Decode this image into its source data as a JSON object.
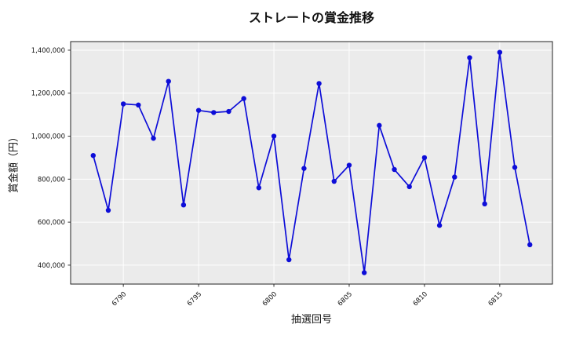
{
  "chart_data": {
    "type": "line",
    "title": "ストレートの賞金推移",
    "xlabel": "抽選回号",
    "ylabel": "賞金額（円）",
    "series_name": "ストレート賞金額",
    "x": [
      6788,
      6789,
      6790,
      6791,
      6792,
      6793,
      6794,
      6795,
      6796,
      6797,
      6798,
      6799,
      6800,
      6801,
      6802,
      6803,
      6804,
      6805,
      6806,
      6807,
      6808,
      6809,
      6810,
      6811,
      6812,
      6813,
      6814,
      6815,
      6816,
      6817
    ],
    "values": [
      910000,
      655000,
      1150000,
      1145000,
      990000,
      1255000,
      680000,
      1120000,
      1110000,
      1115000,
      1175000,
      760000,
      1000000,
      425000,
      850000,
      1245000,
      790000,
      865000,
      365000,
      1050000,
      845000,
      765000,
      900000,
      585000,
      810000,
      1365000,
      685000,
      1390000,
      855000,
      495000
    ],
    "x_ticks": [
      6790,
      6795,
      6800,
      6805,
      6810,
      6815
    ],
    "x_tick_labels": [
      "6790",
      "6795",
      "6800",
      "6805",
      "6810",
      "6815"
    ],
    "y_ticks": [
      400000,
      600000,
      800000,
      1000000,
      1200000,
      1400000
    ],
    "y_tick_labels": [
      "400,000",
      "600,000",
      "800,000",
      "1,000,000",
      "1,200,000",
      "1,400,000"
    ],
    "xlim": [
      6786.5,
      6818.5
    ],
    "ylim": [
      312000,
      1440000
    ],
    "grid": true,
    "legend_position": "none",
    "marker": "circle"
  },
  "colors": {
    "line": "#0d0dd8",
    "plot_bg": "#ebebeb",
    "grid": "#ffffff",
    "spine": "#222222",
    "tick": "#333333",
    "text": "#111111",
    "figure_bg": "#ffffff"
  }
}
